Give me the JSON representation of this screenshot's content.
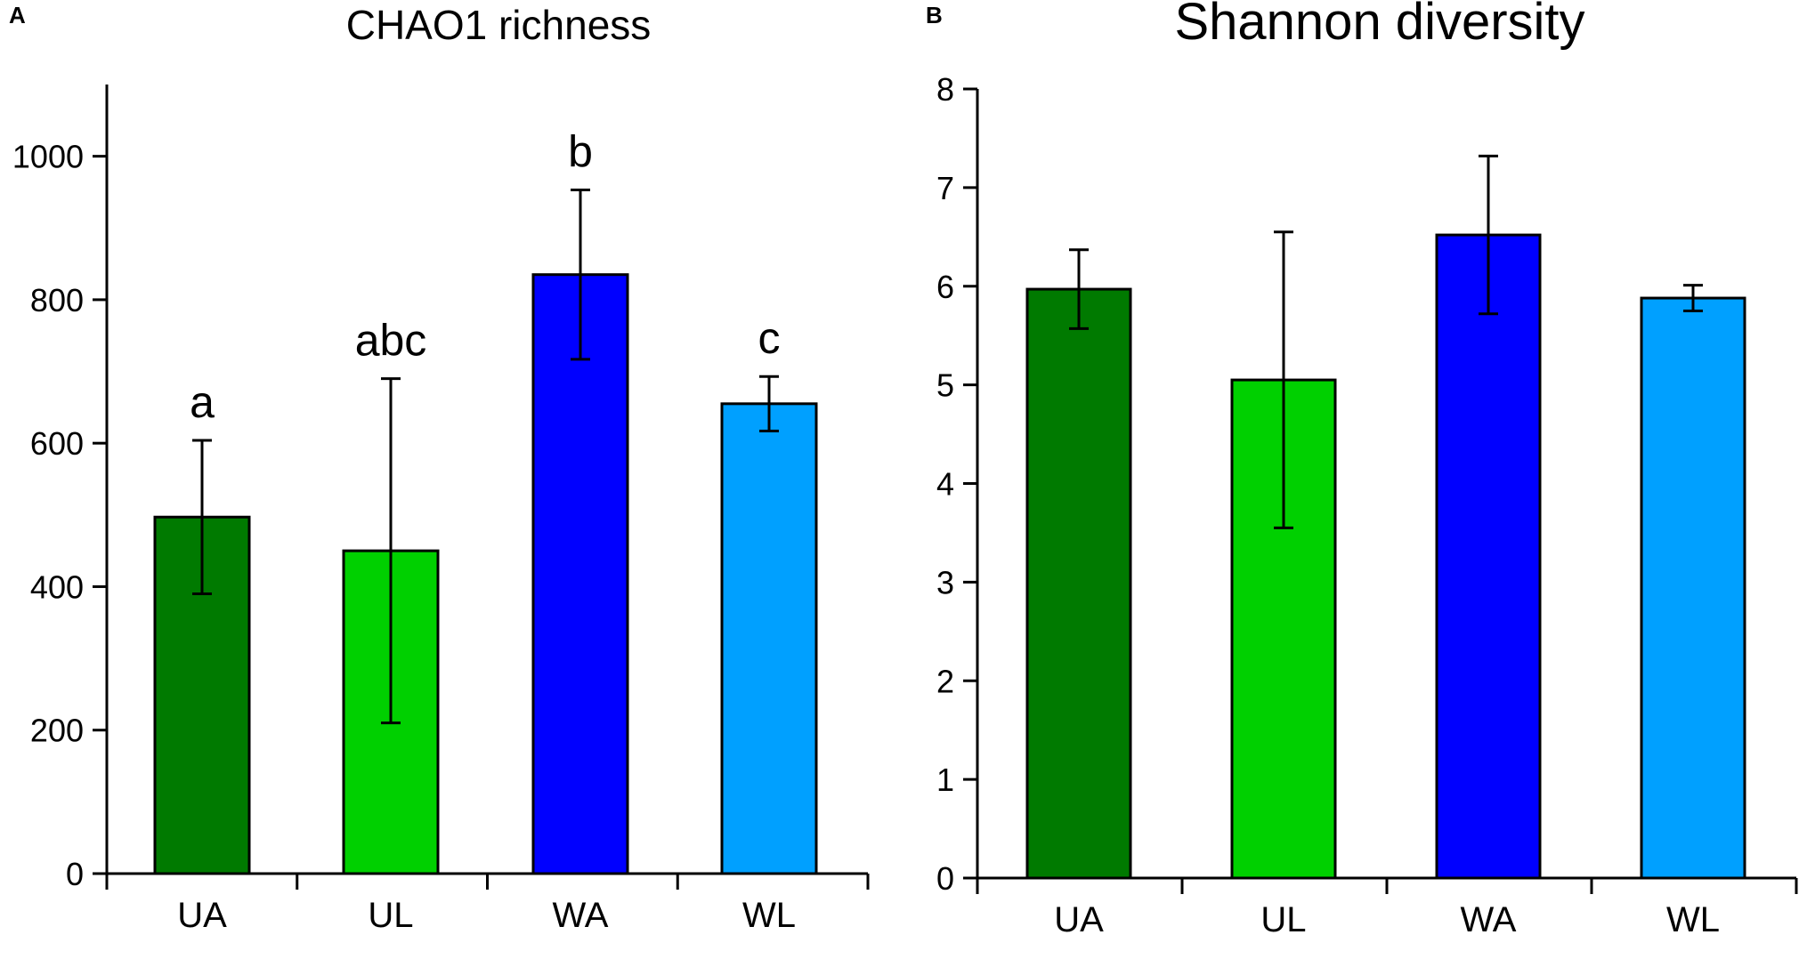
{
  "chart_data": [
    {
      "panel": "A",
      "type": "bar",
      "title": "CHAO1 richness",
      "xlabel": "",
      "ylabel": "",
      "categories": [
        "UA",
        "UL",
        "WA",
        "WL"
      ],
      "values": [
        497,
        450,
        835,
        655
      ],
      "errors": [
        107,
        240,
        118,
        38
      ],
      "significance": [
        "a",
        "abc",
        "b",
        "c"
      ],
      "colors": [
        "#007A00",
        "#00D000",
        "#0000FF",
        "#00A0FF"
      ],
      "ylim": [
        0,
        1100
      ],
      "yticks": [
        0,
        200,
        400,
        600,
        800,
        1000
      ],
      "ytick_labels": [
        "0",
        "200",
        "400",
        "600",
        "800",
        "1000"
      ]
    },
    {
      "panel": "B",
      "type": "bar",
      "title": "Shannon diversity",
      "xlabel": "",
      "ylabel": "",
      "categories": [
        "UA",
        "UL",
        "WA",
        "WL"
      ],
      "values": [
        5.97,
        5.05,
        6.52,
        5.88
      ],
      "errors": [
        0.4,
        1.5,
        0.8,
        0.13
      ],
      "significance": [],
      "colors": [
        "#007A00",
        "#00D000",
        "#0000FF",
        "#00A0FF"
      ],
      "ylim": [
        0,
        8
      ],
      "yticks": [
        0,
        1,
        2,
        3,
        4,
        5,
        6,
        7,
        8
      ],
      "ytick_labels": [
        "0",
        "1",
        "2",
        "3",
        "4",
        "5",
        "6",
        "7",
        "8"
      ]
    }
  ]
}
